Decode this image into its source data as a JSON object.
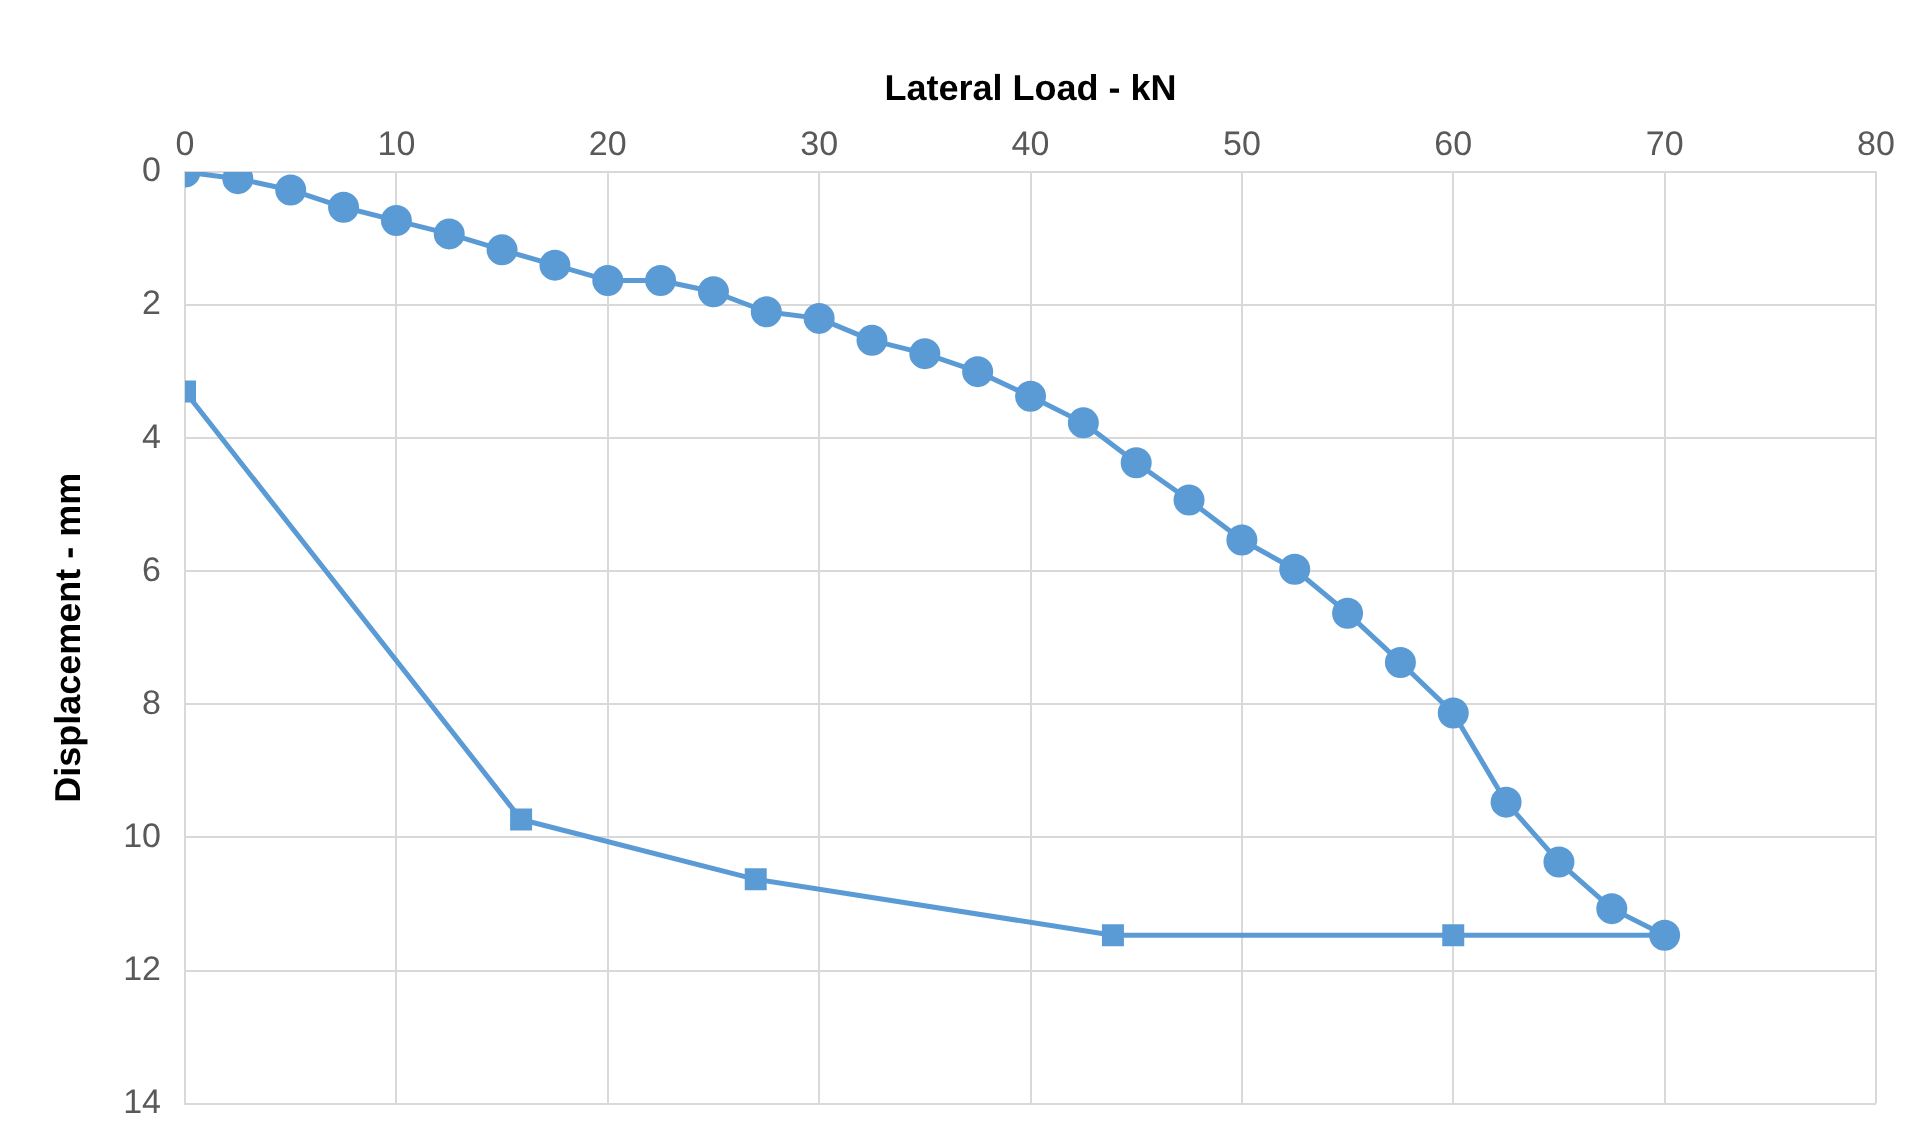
{
  "chart_data": {
    "type": "line",
    "xlabel": "Lateral Load - kN",
    "ylabel": "Displacement - mm",
    "xlim": [
      0,
      80
    ],
    "xticks": [
      0,
      10,
      20,
      30,
      40,
      50,
      60,
      70,
      80
    ],
    "ylim": [
      14,
      0
    ],
    "yticks": [
      0,
      2,
      4,
      6,
      8,
      10,
      12,
      14
    ],
    "grid": true,
    "legend": false,
    "line_style": "solid",
    "series": [
      {
        "color": "#5b9bd5",
        "marker": "circle",
        "x": [
          0,
          2.5,
          5,
          7.5,
          10,
          12.5,
          15,
          17.5,
          20,
          22.5,
          25,
          27.5,
          30,
          32.5,
          35,
          37.5,
          40,
          42.5,
          45,
          47.5,
          50,
          52.5,
          55,
          57.5,
          60,
          62.5,
          65,
          67.5,
          70
        ],
        "values": [
          0,
          0.1,
          0.27,
          0.53,
          0.73,
          0.93,
          1.17,
          1.4,
          1.63,
          1.63,
          1.8,
          2.1,
          2.2,
          2.53,
          2.73,
          3.0,
          3.37,
          3.77,
          4.37,
          4.93,
          5.53,
          5.97,
          6.63,
          7.37,
          8.13,
          9.47,
          10.37,
          11.07,
          11.47
        ]
      },
      {
        "color": "#5b9bd5",
        "marker": "square",
        "x": [
          0,
          15.9,
          27,
          43.9,
          60,
          70
        ],
        "values": [
          3.3,
          9.73,
          10.63,
          11.47,
          11.47,
          11.47
        ]
      }
    ]
  }
}
